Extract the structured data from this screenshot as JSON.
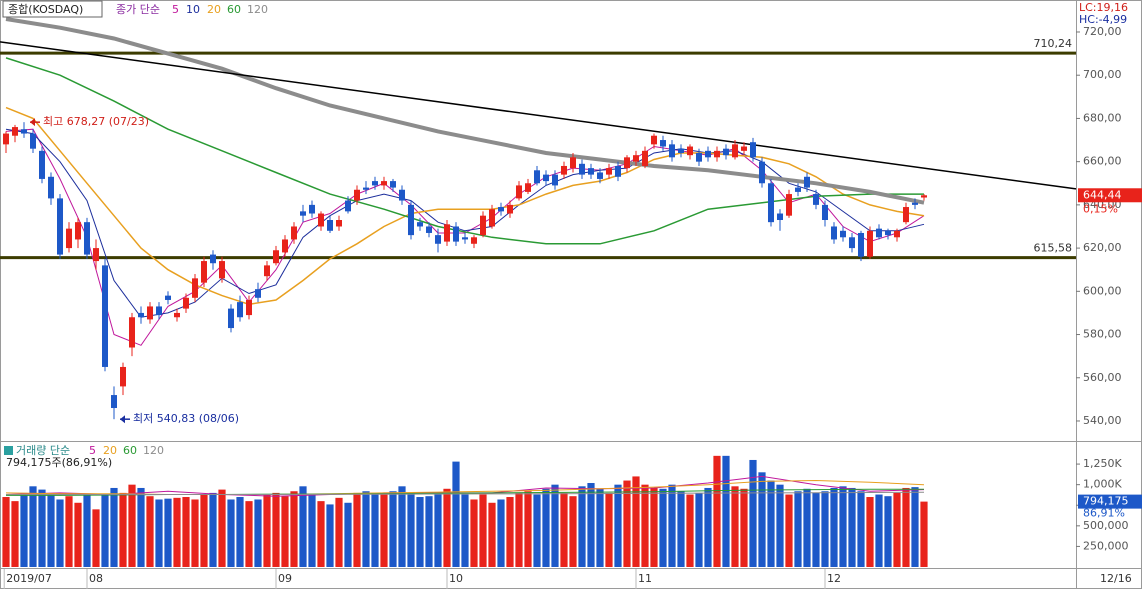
{
  "chart_data": {
    "type": "candlestick",
    "symbol": "종합(KOSDAQ)",
    "ma_label": "종가 단순",
    "lc_label": "LC:19,16",
    "hc_label": "HC:-4,99",
    "up_color": "#e8231b",
    "down_color": "#1d58c8",
    "xlim": [
      -0.667,
      118.89
    ],
    "xticks": [
      {
        "value": -0.2,
        "label": "2019/07"
      },
      {
        "value": 9,
        "label": "08"
      },
      {
        "value": 30,
        "label": "09"
      },
      {
        "value": 49,
        "label": "10"
      },
      {
        "value": 70,
        "label": "11"
      },
      {
        "value": 91,
        "label": "12"
      }
    ],
    "date_label": "12/16",
    "ylim": [
      531.2,
      734.8
    ],
    "yticks": [
      {
        "value": 720,
        "label": "720,00"
      },
      {
        "value": 700,
        "label": "700,00"
      },
      {
        "value": 680,
        "label": "680,00"
      },
      {
        "value": 660,
        "label": "660,00"
      },
      {
        "value": 640,
        "label": "640,00"
      },
      {
        "value": 620,
        "label": "620,00"
      },
      {
        "value": 600,
        "label": "600,00"
      },
      {
        "value": 580,
        "label": "580,00"
      },
      {
        "value": 560,
        "label": "560,00"
      },
      {
        "value": 540,
        "label": "540,00"
      }
    ],
    "candles": [
      [
        668,
        674,
        664,
        673
      ],
      [
        672,
        677,
        669,
        676
      ],
      [
        675,
        678.27,
        671,
        673
      ],
      [
        673,
        675,
        664,
        666
      ],
      [
        665,
        667,
        650,
        652
      ],
      [
        653,
        655,
        640,
        643
      ],
      [
        643,
        645,
        615,
        617
      ],
      [
        620,
        632,
        618,
        629
      ],
      [
        624,
        634,
        620,
        632
      ],
      [
        632,
        634,
        615,
        617
      ],
      [
        614,
        624,
        610,
        620
      ],
      [
        612,
        615,
        563,
        565
      ],
      [
        552,
        556,
        540.83,
        546
      ],
      [
        556,
        567,
        552,
        565
      ],
      [
        574,
        590,
        570,
        588
      ],
      [
        590,
        593,
        585,
        588
      ],
      [
        587,
        595,
        585,
        593
      ],
      [
        593,
        595,
        587,
        589
      ],
      [
        598,
        600,
        594,
        596
      ],
      [
        588,
        592,
        586,
        590
      ],
      [
        592,
        599,
        590,
        597
      ],
      [
        597,
        608,
        595,
        606
      ],
      [
        604,
        616,
        602,
        614
      ],
      [
        617,
        619,
        610,
        613
      ],
      [
        606,
        616,
        604,
        614
      ],
      [
        592,
        594,
        581,
        583
      ],
      [
        595,
        598,
        586,
        588
      ],
      [
        589,
        598,
        587,
        596
      ],
      [
        601,
        604,
        595,
        597
      ],
      [
        607,
        614,
        605,
        612
      ],
      [
        613,
        621,
        612,
        619
      ],
      [
        618,
        626,
        616,
        624
      ],
      [
        624,
        632,
        622,
        630
      ],
      [
        637,
        640,
        632,
        635
      ],
      [
        640,
        642,
        634,
        636
      ],
      [
        630,
        637,
        628,
        636
      ],
      [
        633,
        635,
        627,
        628
      ],
      [
        630,
        635,
        628,
        633
      ],
      [
        642,
        644,
        636,
        637
      ],
      [
        642,
        649,
        640,
        647
      ],
      [
        648,
        651,
        645,
        647
      ],
      [
        651,
        653,
        647,
        649
      ],
      [
        649,
        653,
        647,
        651
      ],
      [
        651,
        652,
        646,
        648
      ],
      [
        647,
        649,
        640,
        642
      ],
      [
        640,
        642,
        624,
        626
      ],
      [
        632,
        634,
        628,
        630
      ],
      [
        630,
        632,
        625,
        627
      ],
      [
        626,
        629,
        618,
        622
      ],
      [
        623,
        633,
        621,
        631
      ],
      [
        630,
        632,
        621,
        623
      ],
      [
        625,
        627,
        622,
        624
      ],
      [
        622,
        626,
        620,
        625
      ],
      [
        626,
        637,
        625,
        635
      ],
      [
        630,
        640,
        629,
        638
      ],
      [
        639,
        641,
        635,
        637
      ],
      [
        636,
        642,
        634,
        640
      ],
      [
        643,
        651,
        642,
        649
      ],
      [
        646,
        652,
        645,
        650
      ],
      [
        656,
        658,
        649,
        650
      ],
      [
        654,
        656,
        649,
        651
      ],
      [
        654,
        656,
        647,
        649
      ],
      [
        654,
        660,
        652,
        658
      ],
      [
        657,
        664,
        655,
        662
      ],
      [
        659,
        661,
        652,
        654
      ],
      [
        657,
        659,
        652,
        654
      ],
      [
        655,
        657,
        650,
        652
      ],
      [
        654,
        659,
        652,
        657
      ],
      [
        658,
        660,
        651,
        653
      ],
      [
        657,
        663,
        655,
        662
      ],
      [
        660,
        665,
        658,
        663
      ],
      [
        658,
        667,
        657,
        665
      ],
      [
        668,
        673,
        666,
        672
      ],
      [
        670,
        672,
        665,
        667
      ],
      [
        668,
        670,
        660,
        662
      ],
      [
        666,
        668,
        662,
        664
      ],
      [
        663,
        668,
        661,
        667
      ],
      [
        664,
        666,
        658,
        660
      ],
      [
        665,
        667,
        660,
        662
      ],
      [
        662,
        667,
        660,
        665
      ],
      [
        666,
        668,
        661,
        663
      ],
      [
        662,
        670,
        661,
        668
      ],
      [
        665,
        669,
        663,
        667
      ],
      [
        669,
        671,
        660,
        662
      ],
      [
        660,
        662,
        648,
        650
      ],
      [
        650,
        652,
        630,
        632
      ],
      [
        636,
        638,
        628,
        633
      ],
      [
        635,
        647,
        634,
        645
      ],
      [
        648,
        650,
        644,
        646
      ],
      [
        653,
        655,
        646,
        648
      ],
      [
        645,
        647,
        638,
        640
      ],
      [
        640,
        642,
        630,
        633
      ],
      [
        630,
        632,
        622,
        624
      ],
      [
        628,
        630,
        623,
        625
      ],
      [
        625,
        627,
        618,
        620
      ],
      [
        627,
        628,
        614,
        616
      ],
      [
        616,
        630,
        615,
        628
      ],
      [
        629,
        631,
        624,
        625
      ],
      [
        628,
        629,
        624,
        626
      ],
      [
        625,
        629,
        623,
        628
      ],
      [
        632,
        641,
        631,
        639
      ],
      [
        641,
        643,
        638,
        640
      ],
      [
        643.4,
        645,
        642,
        644.44
      ]
    ],
    "ma_series": [
      {
        "name": "5",
        "color": "#c0189c",
        "line_width": 1,
        "x": [
          0,
          3,
          6,
          9,
          12,
          15,
          18,
          21,
          24,
          27,
          30,
          33,
          36,
          39,
          42,
          45,
          48,
          51,
          54,
          57,
          60,
          63,
          66,
          69,
          72,
          75,
          78,
          81,
          84,
          87,
          90,
          93,
          96,
          99,
          102
        ],
        "values": [
          674,
          675,
          652,
          625,
          580,
          575,
          593,
          600,
          612,
          595,
          610,
          632,
          636,
          645,
          650,
          640,
          627,
          627,
          634,
          645,
          653,
          657,
          656,
          659,
          667,
          665,
          663,
          666,
          656,
          641,
          645,
          630,
          623,
          627,
          635
        ]
      },
      {
        "name": "10",
        "color": "#1c2e9c",
        "line_width": 1,
        "x": [
          0,
          3,
          6,
          9,
          12,
          15,
          18,
          21,
          24,
          27,
          30,
          33,
          36,
          39,
          42,
          45,
          48,
          51,
          54,
          57,
          60,
          63,
          66,
          69,
          72,
          75,
          78,
          81,
          84,
          87,
          90,
          93,
          96,
          99,
          102
        ],
        "values": [
          675,
          673,
          660,
          642,
          605,
          588,
          590,
          595,
          606,
          599,
          603,
          625,
          635,
          642,
          645,
          642,
          632,
          628,
          630,
          640,
          649,
          654,
          656,
          657,
          664,
          666,
          664,
          665,
          660,
          650,
          646,
          637,
          628,
          628,
          631
        ]
      },
      {
        "name": "20",
        "color": "#e8a020",
        "line_width": 1.5,
        "x": [
          0,
          3,
          6,
          9,
          12,
          15,
          18,
          21,
          24,
          27,
          30,
          33,
          36,
          39,
          42,
          45,
          48,
          51,
          54,
          57,
          60,
          63,
          66,
          69,
          72,
          75,
          78,
          81,
          84,
          87,
          90,
          93,
          96,
          99,
          102
        ],
        "values": [
          685,
          680,
          665,
          650,
          635,
          620,
          610,
          603,
          598,
          594,
          596,
          605,
          615,
          622,
          630,
          636,
          638,
          638,
          638,
          640,
          645,
          649,
          651,
          655,
          661,
          664,
          664,
          663,
          662,
          659,
          653,
          645,
          640,
          637,
          635
        ]
      },
      {
        "name": "60",
        "color": "#2a9a34",
        "line_width": 1.5,
        "x": [
          0,
          6,
          12,
          18,
          24,
          30,
          36,
          42,
          48,
          54,
          60,
          66,
          72,
          78,
          84,
          90,
          96,
          102
        ],
        "values": [
          708,
          700,
          688,
          675,
          665,
          655,
          645,
          638,
          630,
          625,
          622,
          622,
          628,
          638,
          641,
          644,
          645,
          645
        ]
      },
      {
        "name": "120",
        "color": "#8c8c8c",
        "line_width": 4,
        "x": [
          0,
          6,
          12,
          18,
          24,
          30,
          36,
          42,
          48,
          54,
          60,
          66,
          72,
          78,
          84,
          90,
          96,
          102
        ],
        "values": [
          726,
          722,
          717,
          710,
          703,
          694,
          686,
          680,
          674,
          669,
          664,
          661,
          658,
          656,
          653,
          650,
          646,
          641
        ]
      }
    ],
    "trend_line": {
      "color": "#000000",
      "x": [
        -0.667,
        118.89
      ],
      "values": [
        715.4,
        647.4
      ]
    },
    "hlines": [
      {
        "value": 710.24,
        "label": "710,24"
      },
      {
        "value": 615.58,
        "label": "615,58"
      }
    ],
    "hline_color": "#3c3c00",
    "annotations": [
      {
        "text": "최고 678,27 (07/23)",
        "x": 2,
        "y": 678.27,
        "color": "#d0201a"
      },
      {
        "text": "최저 540,83 (08/06)",
        "x": 12,
        "y": 540.83,
        "color": "#1a2fa0"
      }
    ],
    "last_price": {
      "value": 644.44,
      "label": "644,44"
    },
    "change_label": "0,15%",
    "volume_label": "거래량 단순",
    "volume_legend": "794,175주(86,91%)",
    "volume_ylim": [
      0,
      1506000
    ],
    "volume_yticks": [
      {
        "value": 1250000,
        "label": "1,250K"
      },
      {
        "value": 1000000,
        "label": "1,000K"
      },
      {
        "value": 750000,
        "label": "750,000"
      },
      {
        "value": 500000,
        "label": "500,000"
      },
      {
        "value": 250000,
        "label": "250,000"
      }
    ],
    "volumes": [
      850000,
      800000,
      900000,
      980000,
      940000,
      880000,
      820000,
      860000,
      780000,
      880000,
      700000,
      880000,
      960000,
      900000,
      1000000,
      960000,
      860000,
      820000,
      830000,
      840000,
      850000,
      820000,
      880000,
      900000,
      940000,
      820000,
      850000,
      800000,
      820000,
      880000,
      900000,
      860000,
      920000,
      980000,
      880000,
      800000,
      760000,
      840000,
      780000,
      900000,
      920000,
      900000,
      880000,
      920000,
      980000,
      880000,
      850000,
      860000,
      880000,
      950000,
      1280000,
      880000,
      820000,
      880000,
      780000,
      820000,
      850000,
      900000,
      920000,
      880000,
      950000,
      1000000,
      900000,
      860000,
      980000,
      1020000,
      950000,
      900000,
      1000000,
      1050000,
      1100000,
      1000000,
      960000,
      950000,
      1000000,
      920000,
      880000,
      900000,
      960000,
      1350000,
      1350000,
      980000,
      950000,
      1300000,
      1150000,
      1050000,
      1000000,
      880000,
      920000,
      950000,
      900000,
      920000,
      960000,
      980000,
      960000,
      920000,
      850000,
      880000,
      860000,
      900000,
      960000,
      970000,
      794175
    ],
    "volume_ma_series": [
      {
        "name": "5",
        "color": "#c0189c",
        "x": [
          0,
          6,
          12,
          18,
          24,
          30,
          36,
          42,
          48,
          54,
          60,
          66,
          72,
          78,
          84,
          90,
          96,
          102
        ],
        "values": [
          880000,
          900000,
          880000,
          920000,
          880000,
          860000,
          880000,
          900000,
          900000,
          900000,
          960000,
          950000,
          960000,
          1020000,
          1100000,
          1000000,
          920000,
          940000
        ]
      },
      {
        "name": "20",
        "color": "#e8a020",
        "x": [
          0,
          6,
          12,
          18,
          24,
          30,
          36,
          42,
          48,
          54,
          60,
          66,
          72,
          78,
          84,
          90,
          96,
          102
        ],
        "values": [
          900000,
          890000,
          890000,
          880000,
          880000,
          880000,
          890000,
          900000,
          910000,
          920000,
          930000,
          950000,
          970000,
          1000000,
          1040000,
          1050000,
          1030000,
          1000000
        ]
      },
      {
        "name": "60",
        "color": "#2a9a34",
        "x": [
          0,
          6,
          12,
          18,
          24,
          30,
          36,
          42,
          48,
          54,
          60,
          66,
          72,
          78,
          84,
          90,
          96,
          102
        ],
        "values": [
          870000,
          870000,
          875000,
          880000,
          880000,
          885000,
          885000,
          890000,
          895000,
          900000,
          905000,
          910000,
          915000,
          925000,
          935000,
          940000,
          945000,
          945000
        ]
      },
      {
        "name": "120",
        "color": "#8c8c8c",
        "x": [
          0,
          6,
          12,
          18,
          24,
          30,
          36,
          42,
          48,
          54,
          60,
          66,
          72,
          78,
          84,
          90,
          96,
          102
        ],
        "values": [
          880000,
          880000,
          880000,
          880000,
          880000,
          880000,
          882000,
          884000,
          886000,
          888000,
          890000,
          892000,
          895000,
          898000,
          900000,
          902000,
          905000,
          908000
        ]
      }
    ],
    "last_volume": {
      "value": 794175,
      "label": "794,175"
    },
    "volume_ratio_label": "86,91%"
  }
}
